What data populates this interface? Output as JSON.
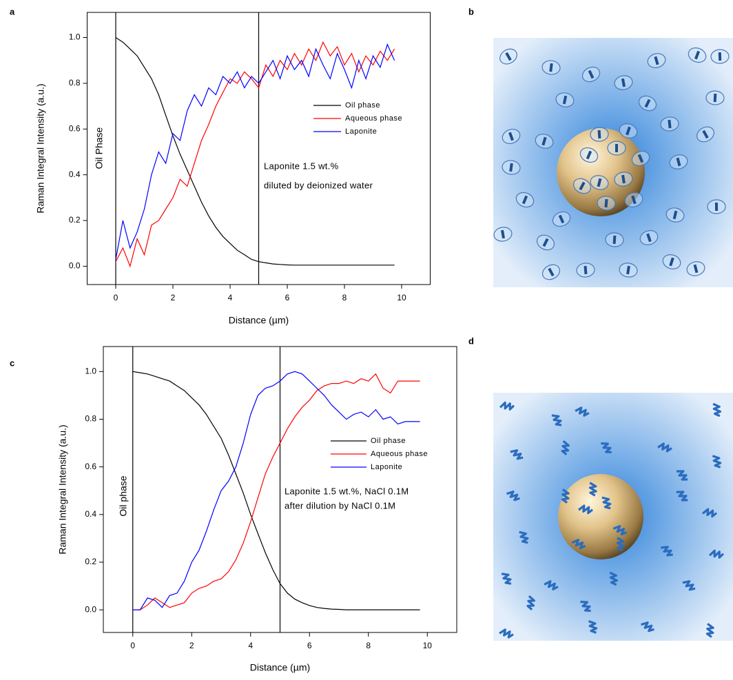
{
  "panels": [
    "a",
    "b",
    "c",
    "d"
  ],
  "chart_data": [
    {
      "type": "line",
      "xlabel": "Distance (µm)",
      "ylabel": "Raman Integral Intensity (a.u.)",
      "annotations": [
        "Oil Phase",
        "Laponite 1.5 wt.%",
        "diluted by deionized water"
      ],
      "xlim": [
        -1,
        11
      ],
      "ylim": [
        -0.08,
        1.11
      ],
      "xticks": [
        0,
        2,
        4,
        6,
        8,
        10
      ],
      "yticks": [
        {
          "value": 0,
          "label": "0.0"
        },
        0.2,
        0.4,
        0.6,
        0.8,
        {
          "value": 1,
          "label": "1.0"
        }
      ],
      "vlines": [
        0,
        5
      ],
      "x": [
        0,
        0.25,
        0.5,
        0.75,
        1,
        1.25,
        1.5,
        1.75,
        2,
        2.25,
        2.5,
        2.75,
        3,
        3.25,
        3.5,
        3.75,
        4,
        4.25,
        4.5,
        4.75,
        5,
        5.25,
        5.5,
        5.75,
        6,
        6.25,
        6.5,
        6.75,
        7,
        7.25,
        7.5,
        7.75,
        8,
        8.25,
        8.5,
        8.75,
        9,
        9.25,
        9.5,
        9.75
      ],
      "series": [
        {
          "name": "Oil phase",
          "color": "#000000",
          "values": [
            1.0,
            0.98,
            0.95,
            0.92,
            0.87,
            0.82,
            0.75,
            0.66,
            0.57,
            0.49,
            0.42,
            0.35,
            0.28,
            0.22,
            0.17,
            0.13,
            0.1,
            0.07,
            0.05,
            0.03,
            0.02,
            0.015,
            0.01,
            0.008,
            0.006,
            0.005,
            0.005,
            0.005,
            0.005,
            0.005,
            0.005,
            0.005,
            0.005,
            0.005,
            0.005,
            0.005,
            0.005,
            0.005,
            0.005,
            0.005
          ]
        },
        {
          "name": "Aqueous phase",
          "color": "#ff0000",
          "values": [
            0.02,
            0.08,
            0.0,
            0.12,
            0.05,
            0.18,
            0.2,
            0.25,
            0.3,
            0.38,
            0.35,
            0.45,
            0.55,
            0.62,
            0.7,
            0.76,
            0.82,
            0.8,
            0.85,
            0.82,
            0.78,
            0.88,
            0.83,
            0.9,
            0.86,
            0.93,
            0.88,
            0.95,
            0.9,
            0.98,
            0.92,
            0.96,
            0.88,
            0.93,
            0.85,
            0.92,
            0.88,
            0.94,
            0.9,
            0.95
          ]
        },
        {
          "name": "Laponite",
          "color": "#0000ff",
          "values": [
            0.03,
            0.2,
            0.08,
            0.15,
            0.25,
            0.4,
            0.5,
            0.45,
            0.58,
            0.55,
            0.68,
            0.75,
            0.7,
            0.78,
            0.75,
            0.83,
            0.8,
            0.85,
            0.78,
            0.83,
            0.8,
            0.85,
            0.9,
            0.82,
            0.92,
            0.86,
            0.9,
            0.83,
            0.95,
            0.88,
            0.82,
            0.93,
            0.86,
            0.78,
            0.9,
            0.82,
            0.92,
            0.87,
            0.97,
            0.9
          ]
        }
      ]
    },
    {
      "type": "line",
      "xlabel": "Distance (µm)",
      "ylabel": "Raman Integral Intensity (a.u.)",
      "annotations": [
        "Oil phase",
        "Laponite 1.5 wt.%, NaCl 0.1M",
        "after dilution by NaCl 0.1M"
      ],
      "xlim": [
        -1,
        11
      ],
      "ylim": [
        -0.095,
        1.105
      ],
      "xticks": [
        0,
        2,
        4,
        6,
        8,
        10
      ],
      "yticks": [
        {
          "value": 0,
          "label": "0.0"
        },
        0.2,
        0.4,
        0.6,
        0.8,
        {
          "value": 1,
          "label": "1.0"
        }
      ],
      "vlines": [
        0,
        5
      ],
      "x": [
        0,
        0.25,
        0.5,
        0.75,
        1,
        1.25,
        1.5,
        1.75,
        2,
        2.25,
        2.5,
        2.75,
        3,
        3.25,
        3.5,
        3.75,
        4,
        4.25,
        4.5,
        4.75,
        5,
        5.25,
        5.5,
        5.75,
        6,
        6.25,
        6.5,
        6.75,
        7,
        7.25,
        7.5,
        7.75,
        8,
        8.25,
        8.5,
        8.75,
        9,
        9.25,
        9.5,
        9.75
      ],
      "series": [
        {
          "name": "Oil phase",
          "color": "#000000",
          "values": [
            1.0,
            0.995,
            0.99,
            0.98,
            0.97,
            0.96,
            0.94,
            0.92,
            0.89,
            0.86,
            0.82,
            0.77,
            0.72,
            0.65,
            0.57,
            0.49,
            0.4,
            0.32,
            0.24,
            0.17,
            0.11,
            0.07,
            0.045,
            0.03,
            0.018,
            0.01,
            0.006,
            0.003,
            0.002,
            0.0,
            0.0,
            0.0,
            0.0,
            0.0,
            0.0,
            0.0,
            0.0,
            0.0,
            0.0,
            0.0
          ]
        },
        {
          "name": "Aqueous phase",
          "color": "#ff0000",
          "values": [
            0.0,
            0.0,
            0.02,
            0.05,
            0.03,
            0.01,
            0.02,
            0.03,
            0.07,
            0.09,
            0.1,
            0.12,
            0.13,
            0.16,
            0.21,
            0.28,
            0.37,
            0.47,
            0.57,
            0.64,
            0.7,
            0.76,
            0.81,
            0.85,
            0.88,
            0.92,
            0.94,
            0.95,
            0.95,
            0.96,
            0.95,
            0.97,
            0.96,
            0.99,
            0.93,
            0.91,
            0.96,
            0.96,
            0.96,
            0.96
          ]
        },
        {
          "name": "Laponite",
          "color": "#0000ff",
          "values": [
            0.0,
            0.0,
            0.05,
            0.04,
            0.01,
            0.06,
            0.07,
            0.12,
            0.2,
            0.25,
            0.33,
            0.42,
            0.5,
            0.54,
            0.6,
            0.7,
            0.82,
            0.9,
            0.93,
            0.94,
            0.96,
            0.99,
            1.0,
            0.99,
            0.96,
            0.93,
            0.9,
            0.86,
            0.83,
            0.8,
            0.82,
            0.83,
            0.81,
            0.84,
            0.8,
            0.81,
            0.78,
            0.79,
            0.79,
            0.79
          ]
        }
      ]
    }
  ]
}
